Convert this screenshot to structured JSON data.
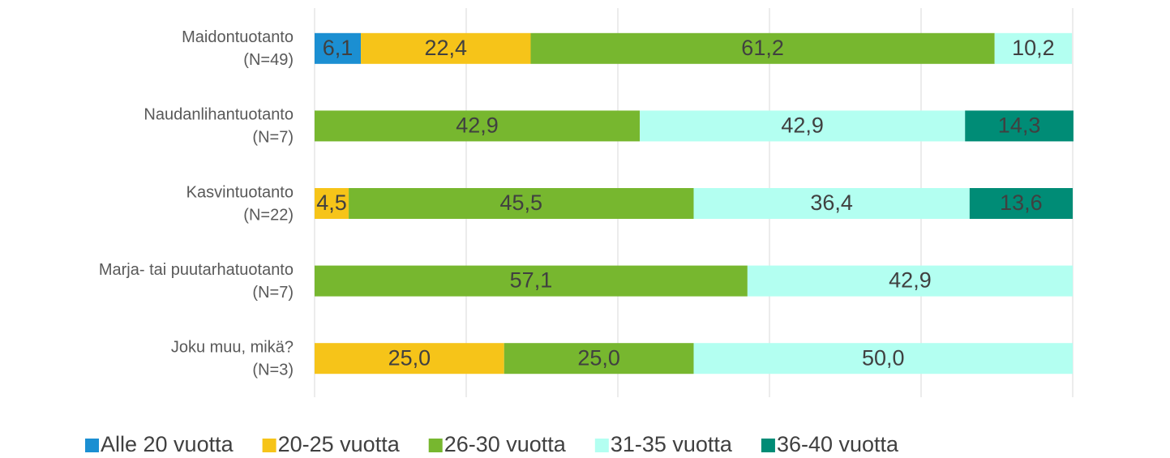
{
  "chart_data": {
    "type": "stacked_bar_horizontal",
    "categories": [
      [
        "Maidontuotanto",
        "(N=49)"
      ],
      [
        "Naudanlihantuotanto",
        "(N=7)"
      ],
      [
        "Kasvintuotanto",
        "(N=22)"
      ],
      [
        "Marja- tai puutarhatuotanto",
        "(N=7)"
      ],
      [
        "Joku muu, mikä?",
        "(N=3)"
      ]
    ],
    "series": [
      {
        "name": "Alle 20 vuotta",
        "color": "#1b8fd2",
        "values": [
          6.1,
          null,
          null,
          null,
          null
        ],
        "value_labels": [
          "6,1",
          null,
          null,
          null,
          null
        ]
      },
      {
        "name": "20-25 vuotta",
        "color": "#f6c419",
        "values": [
          22.4,
          null,
          4.5,
          null,
          25.0
        ],
        "value_labels": [
          "22,4",
          null,
          "4,5",
          null,
          "25,0"
        ]
      },
      {
        "name": "26-30 vuotta",
        "color": "#77b72f",
        "values": [
          61.2,
          42.9,
          45.5,
          57.1,
          25.0
        ],
        "value_labels": [
          "61,2",
          "42,9",
          "45,5",
          "57,1",
          "25,0"
        ]
      },
      {
        "name": "31-35 vuotta",
        "color": "#b3fff1",
        "values": [
          10.2,
          42.9,
          36.4,
          42.9,
          50.0
        ],
        "value_labels": [
          "10,2",
          "42,9",
          "36,4",
          "42,9",
          "50,0"
        ]
      },
      {
        "name": "36-40 vuotta",
        "color": "#008c76",
        "values": [
          null,
          14.3,
          13.6,
          null,
          null
        ],
        "value_labels": [
          null,
          "14,3",
          "13,6",
          null,
          null
        ]
      }
    ],
    "xlim": [
      0,
      100
    ],
    "xticks": [
      0,
      20,
      40,
      60,
      80,
      100
    ],
    "grid": true,
    "legend": "bottom"
  }
}
